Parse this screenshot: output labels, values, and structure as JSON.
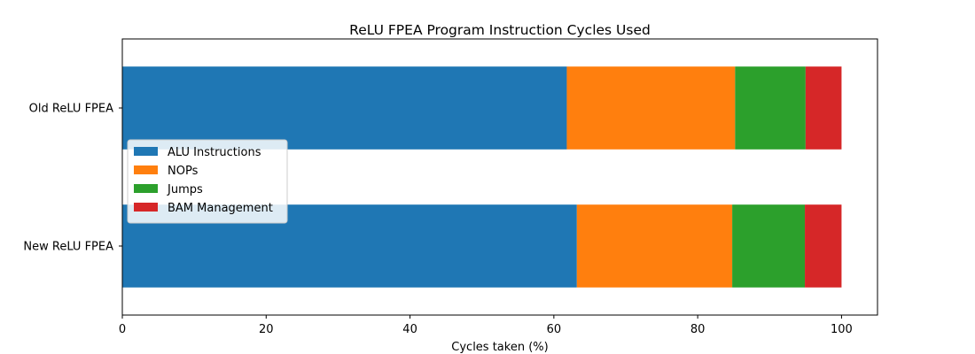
{
  "chart_data": {
    "type": "bar",
    "orientation": "horizontal",
    "stacked": true,
    "title": "ReLU FPEA Program Instruction Cycles Used",
    "xlabel": "Cycles taken (%)",
    "ylabel": "",
    "xlim": [
      0,
      105
    ],
    "xticks": [
      "0",
      "20",
      "40",
      "60",
      "80",
      "100"
    ],
    "categories": [
      "Old ReLU FPEA",
      "New ReLU FPEA"
    ],
    "series": [
      {
        "name": "ALU Instructions",
        "color": "#1f77b4",
        "values": [
          61.8,
          63.2
        ]
      },
      {
        "name": "NOPs",
        "color": "#ff7f0e",
        "values": [
          23.4,
          21.6
        ]
      },
      {
        "name": "Jumps",
        "color": "#2ca02c",
        "values": [
          9.8,
          10.1
        ]
      },
      {
        "name": "BAM Management",
        "color": "#d62728",
        "values": [
          5.0,
          5.1
        ]
      }
    ],
    "grid": false,
    "legend_position": "center-left"
  }
}
